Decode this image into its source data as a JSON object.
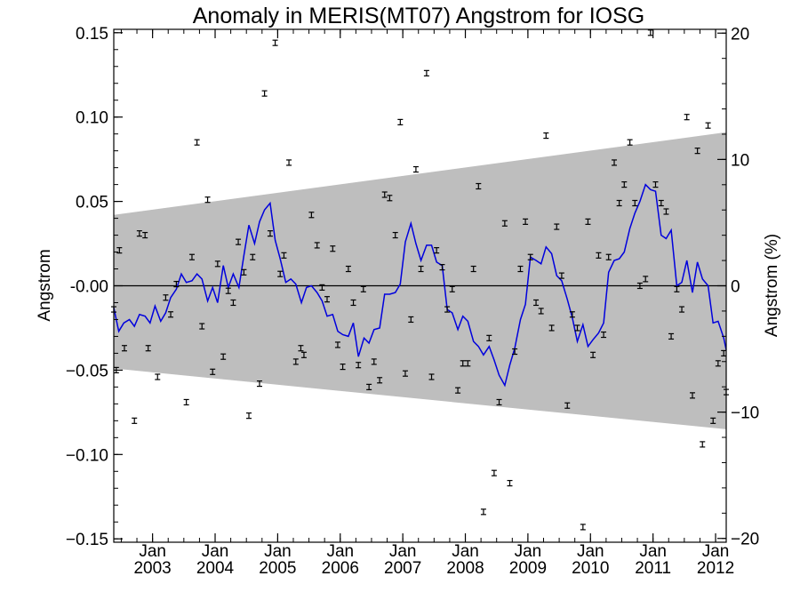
{
  "chart_data": {
    "type": "line",
    "title": "Anomaly in MERIS(MT07) Angstrom for IOSG",
    "ylabel": "Angstrom",
    "ylabel_right": "Angstrom (%)",
    "xlabel": "",
    "ylim": [
      -0.152,
      0.152
    ],
    "ylim_right": [
      -20.3,
      20.3
    ],
    "xlim": [
      2002.38,
      2012.17
    ],
    "y_ticks": [
      {
        "value": 0.15,
        "label": "0.15"
      },
      {
        "value": 0.1,
        "label": "0.10"
      },
      {
        "value": 0.05,
        "label": "0.05"
      },
      {
        "value": 0.0,
        "label": "-0.00"
      },
      {
        "value": -0.05,
        "label": "−0.05"
      },
      {
        "value": -0.1,
        "label": "−0.10"
      },
      {
        "value": -0.15,
        "label": "−0.15"
      }
    ],
    "y_right_ticks": [
      {
        "value": 20,
        "label": "20"
      },
      {
        "value": 10,
        "label": "10"
      },
      {
        "value": 0,
        "label": "0"
      },
      {
        "value": -10,
        "label": "−10"
      },
      {
        "value": -20,
        "label": "−20"
      }
    ],
    "x_ticks": [
      {
        "value": 2003.0,
        "month": "Jan",
        "year": "2003"
      },
      {
        "value": 2004.0,
        "month": "Jan",
        "year": "2004"
      },
      {
        "value": 2005.0,
        "month": "Jan",
        "year": "2005"
      },
      {
        "value": 2006.0,
        "month": "Jan",
        "year": "2006"
      },
      {
        "value": 2007.0,
        "month": "Jan",
        "year": "2007"
      },
      {
        "value": 2008.0,
        "month": "Jan",
        "year": "2008"
      },
      {
        "value": 2009.0,
        "month": "Jan",
        "year": "2009"
      },
      {
        "value": 2010.0,
        "month": "Jan",
        "year": "2010"
      },
      {
        "value": 2011.0,
        "month": "Jan",
        "year": "2011"
      },
      {
        "value": 2012.0,
        "month": "Jan",
        "year": "2012"
      }
    ],
    "band": {
      "x": [
        2002.38,
        2012.17
      ],
      "upper": [
        0.042,
        0.091
      ],
      "lower": [
        -0.049,
        -0.085
      ],
      "color": "#bebebe"
    },
    "zero_line": 0,
    "series": [
      {
        "kind": "line",
        "color": "#0000dd",
        "x": [
          2002.38,
          2002.46,
          2002.54,
          2002.63,
          2002.71,
          2002.79,
          2002.88,
          2002.96,
          2003.04,
          2003.13,
          2003.21,
          2003.29,
          2003.38,
          2003.46,
          2003.54,
          2003.63,
          2003.71,
          2003.79,
          2003.88,
          2003.96,
          2004.04,
          2004.13,
          2004.21,
          2004.29,
          2004.38,
          2004.46,
          2004.54,
          2004.63,
          2004.71,
          2004.79,
          2004.88,
          2004.96,
          2005.04,
          2005.13,
          2005.21,
          2005.29,
          2005.38,
          2005.46,
          2005.54,
          2005.63,
          2005.71,
          2005.79,
          2005.88,
          2005.96,
          2006.04,
          2006.13,
          2006.21,
          2006.29,
          2006.38,
          2006.46,
          2006.54,
          2006.63,
          2006.71,
          2006.79,
          2006.88,
          2006.96,
          2007.04,
          2007.13,
          2007.21,
          2007.29,
          2007.38,
          2007.46,
          2007.54,
          2007.63,
          2007.71,
          2007.79,
          2007.88,
          2007.96,
          2008.04,
          2008.13,
          2008.21,
          2008.29,
          2008.38,
          2008.46,
          2008.54,
          2008.63,
          2008.71,
          2008.79,
          2008.88,
          2008.96,
          2009.04,
          2009.13,
          2009.21,
          2009.29,
          2009.38,
          2009.46,
          2009.54,
          2009.63,
          2009.71,
          2009.79,
          2009.88,
          2009.96,
          2010.04,
          2010.13,
          2010.21,
          2010.29,
          2010.38,
          2010.46,
          2010.54,
          2010.63,
          2010.71,
          2010.79,
          2010.88,
          2010.96,
          2011.04,
          2011.13,
          2011.21,
          2011.29,
          2011.38,
          2011.46,
          2011.54,
          2011.63,
          2011.71,
          2011.79,
          2011.88,
          2011.96,
          2012.04,
          2012.13,
          2012.17
        ],
        "y": [
          -0.013,
          -0.027,
          -0.022,
          -0.02,
          -0.024,
          -0.017,
          -0.018,
          -0.022,
          -0.012,
          -0.021,
          -0.016,
          -0.007,
          -0.002,
          0.007,
          0.002,
          0.003,
          0.007,
          0.004,
          -0.009,
          -0.001,
          -0.01,
          0.012,
          -0.001,
          0.007,
          -0.001,
          0.018,
          0.036,
          0.025,
          0.038,
          0.045,
          0.049,
          0.027,
          0.016,
          0.002,
          0.004,
          0.001,
          -0.01,
          -0.001,
          0.0,
          -0.004,
          -0.009,
          -0.018,
          -0.017,
          -0.027,
          -0.029,
          -0.03,
          -0.022,
          -0.042,
          -0.031,
          -0.034,
          -0.026,
          -0.025,
          -0.005,
          -0.005,
          -0.004,
          0.001,
          0.026,
          0.037,
          0.025,
          0.015,
          0.024,
          0.024,
          0.014,
          0.012,
          -0.014,
          -0.016,
          -0.026,
          -0.018,
          -0.021,
          -0.033,
          -0.036,
          -0.041,
          -0.036,
          -0.044,
          -0.053,
          -0.059,
          -0.047,
          -0.037,
          -0.02,
          -0.011,
          0.017,
          0.015,
          0.013,
          0.023,
          0.019,
          0.006,
          0.003,
          -0.008,
          -0.019,
          -0.033,
          -0.023,
          -0.036,
          -0.032,
          -0.028,
          -0.022,
          0.008,
          0.015,
          0.016,
          0.02,
          0.034,
          0.043,
          0.05,
          0.06,
          0.057,
          0.056,
          0.03,
          0.028,
          0.033,
          0.0,
          0.002,
          0.015,
          -0.004,
          0.014,
          0.004,
          0.0,
          -0.022,
          -0.021,
          -0.031,
          -0.038
        ]
      },
      {
        "kind": "points",
        "marker": "errorbar",
        "color": "#000000",
        "x": [
          2002.38,
          2002.42,
          2002.47,
          2002.55,
          2002.71,
          2002.79,
          2002.88,
          2002.93,
          2003.08,
          2003.21,
          2003.29,
          2003.38,
          2003.54,
          2003.63,
          2003.71,
          2003.79,
          2003.88,
          2003.96,
          2004.04,
          2004.13,
          2004.21,
          2004.29,
          2004.37,
          2004.46,
          2004.54,
          2004.6,
          2004.71,
          2004.79,
          2004.88,
          2004.96,
          2005.04,
          2005.1,
          2005.18,
          2005.29,
          2005.37,
          2005.42,
          2005.54,
          2005.63,
          2005.71,
          2005.79,
          2005.88,
          2005.96,
          2006.04,
          2006.13,
          2006.21,
          2006.29,
          2006.37,
          2006.46,
          2006.54,
          2006.63,
          2006.71,
          2006.79,
          2006.88,
          2006.96,
          2007.04,
          2007.13,
          2007.21,
          2007.29,
          2007.38,
          2007.46,
          2007.54,
          2007.63,
          2007.71,
          2007.79,
          2007.88,
          2007.96,
          2008.04,
          2008.13,
          2008.21,
          2008.29,
          2008.38,
          2008.46,
          2008.54,
          2008.63,
          2008.71,
          2008.79,
          2008.88,
          2008.96,
          2009.04,
          2009.13,
          2009.21,
          2009.29,
          2009.38,
          2009.46,
          2009.54,
          2009.63,
          2009.71,
          2009.79,
          2009.88,
          2009.96,
          2010.04,
          2010.13,
          2010.21,
          2010.29,
          2010.38,
          2010.46,
          2010.54,
          2010.63,
          2010.71,
          2010.79,
          2010.88,
          2010.96,
          2011.04,
          2011.13,
          2011.21,
          2011.29,
          2011.38,
          2011.46,
          2011.54,
          2011.63,
          2011.71,
          2011.79,
          2011.88,
          2011.96,
          2012.04,
          2012.13,
          2012.17
        ],
        "y": [
          -0.014,
          -0.05,
          0.021,
          -0.037,
          -0.08,
          0.031,
          0.03,
          -0.037,
          -0.054,
          -0.007,
          -0.017,
          0.001,
          -0.069,
          0.017,
          0.085,
          -0.024,
          0.051,
          -0.051,
          0.013,
          -0.042,
          -0.003,
          -0.01,
          0.026,
          0.008,
          -0.077,
          0.017,
          -0.058,
          0.114,
          0.031,
          0.144,
          0.007,
          0.018,
          0.073,
          -0.045,
          -0.037,
          -0.041,
          0.042,
          0.024,
          -0.001,
          -0.008,
          0.022,
          -0.035,
          -0.048,
          0.01,
          -0.01,
          -0.047,
          -0.002,
          -0.06,
          -0.045,
          -0.056,
          0.054,
          0.052,
          0.03,
          0.097,
          -0.052,
          -0.02,
          0.069,
          0.01,
          0.126,
          -0.054,
          0.021,
          0.011,
          -0.014,
          -0.002,
          -0.062,
          -0.046,
          -0.046,
          0.01,
          0.059,
          -0.134,
          -0.031,
          -0.111,
          -0.069,
          0.037,
          -0.117,
          -0.039,
          0.01,
          0.038,
          0.017,
          -0.01,
          -0.015,
          0.089,
          -0.025,
          0.035,
          0.006,
          -0.071,
          -0.017,
          -0.025,
          -0.143,
          0.038,
          -0.041,
          0.018,
          -0.029,
          0.017,
          0.073,
          0.049,
          0.06,
          0.085,
          0.049,
          -0.0,
          0.004,
          0.15,
          0.06,
          0.049,
          0.044,
          -0.03,
          -0.002,
          -0.014,
          0.1,
          -0.065,
          0.08,
          -0.094,
          0.095,
          -0.08,
          -0.046,
          -0.04,
          -0.063
        ]
      }
    ]
  }
}
